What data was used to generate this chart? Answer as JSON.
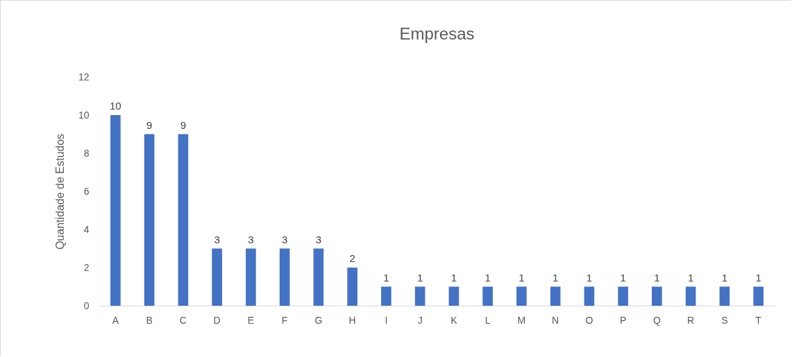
{
  "chart_data": {
    "type": "bar",
    "title": "Empresas",
    "ylabel": "Quantidade de Estudos",
    "categories": [
      "A",
      "B",
      "C",
      "D",
      "E",
      "F",
      "G",
      "H",
      "I",
      "J",
      "K",
      "L",
      "M",
      "N",
      "O",
      "P",
      "Q",
      "R",
      "S",
      "T"
    ],
    "values": [
      10,
      9,
      9,
      3,
      3,
      3,
      3,
      2,
      1,
      1,
      1,
      1,
      1,
      1,
      1,
      1,
      1,
      1,
      1,
      1
    ],
    "color": "#4472c4",
    "ylim": [
      0,
      12
    ],
    "yticks": [
      0,
      2,
      4,
      6,
      8,
      10,
      12
    ],
    "grid": false,
    "data_labels": true
  }
}
